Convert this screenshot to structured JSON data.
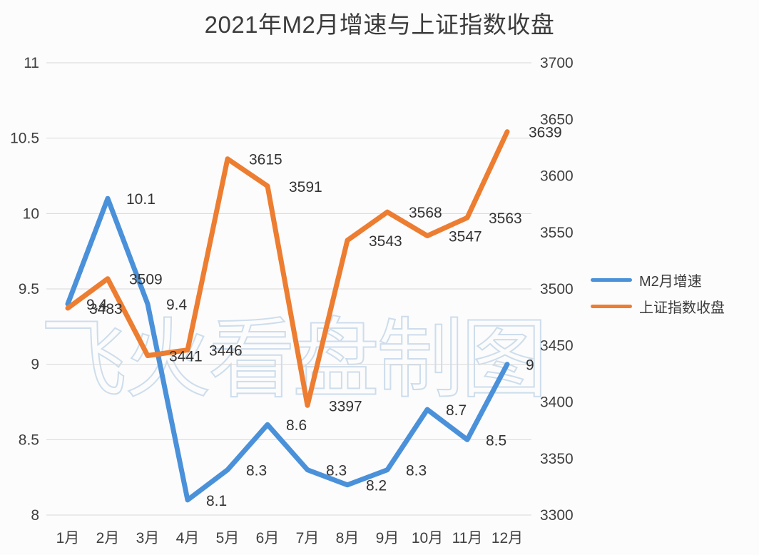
{
  "title": "2021年M2月增速与上证指数收盘",
  "watermark": "飞火看盘制图",
  "colors": {
    "m2_line": "#4A91DA",
    "sse_line": "#ED7D31",
    "grid": "#d9d9d9",
    "text": "#3f3f3f"
  },
  "legend": [
    {
      "label": "M2月增速",
      "color": "#4A91DA"
    },
    {
      "label": "上证指数收盘",
      "color": "#ED7D31"
    }
  ],
  "chart_data": {
    "type": "line",
    "title": "2021年M2月增速与上证指数收盘",
    "categories": [
      "1月",
      "2月",
      "3月",
      "4月",
      "5月",
      "6月",
      "7月",
      "8月",
      "9月",
      "10月",
      "11月",
      "12月"
    ],
    "series": [
      {
        "name": "M2月增速",
        "axis": "left",
        "color": "#4A91DA",
        "values": [
          9.4,
          10.1,
          9.4,
          8.1,
          8.3,
          8.6,
          8.3,
          8.2,
          8.3,
          8.7,
          8.5,
          9
        ]
      },
      {
        "name": "上证指数收盘",
        "axis": "right",
        "color": "#ED7D31",
        "values": [
          3483,
          3509,
          3441,
          3446,
          3615,
          3591,
          3397,
          3543,
          3568,
          3547,
          3563,
          3639
        ]
      }
    ],
    "left_axis": {
      "min": 8,
      "max": 11,
      "ticks": [
        11,
        10.5,
        10,
        9.5,
        9,
        8.5,
        8
      ]
    },
    "right_axis": {
      "min": 3300,
      "max": 3700,
      "ticks": [
        3700,
        3650,
        3600,
        3550,
        3500,
        3450,
        3400,
        3350,
        3300
      ]
    },
    "grid": true,
    "legend_position": "right",
    "data_labels": true
  }
}
